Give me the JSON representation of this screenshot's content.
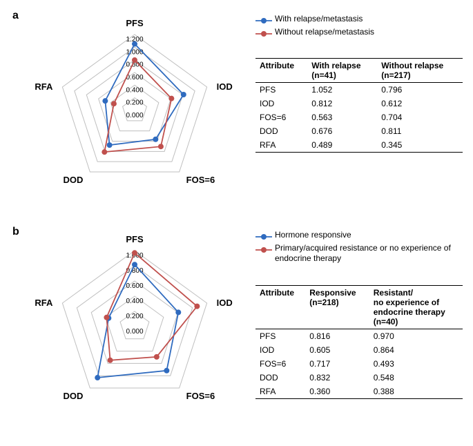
{
  "colors": {
    "series1": "#2f6bbf",
    "series2": "#c0504d",
    "grid": "#bfbfbf",
    "text": "#000000",
    "background": "#ffffff"
  },
  "shared": {
    "axes": [
      "PFS",
      "IOD",
      "FOS=6",
      "DOD",
      "RFA"
    ],
    "marker_radius": 4,
    "line_width": 1.8
  },
  "panel_a": {
    "label": "a",
    "legend": [
      {
        "label": "With relapse/metastasis",
        "color_key": "series1"
      },
      {
        "label": "Without relapse/metastasis",
        "color_key": "series2"
      }
    ],
    "ticks": [
      0.0,
      0.2,
      0.4,
      0.6,
      0.8,
      1.0,
      1.2
    ],
    "max": 1.2,
    "series": {
      "with_relapse": {
        "color_key": "series1",
        "values": [
          1.052,
          0.812,
          0.563,
          0.676,
          0.489
        ]
      },
      "without_relapse": {
        "color_key": "series2",
        "values": [
          0.796,
          0.612,
          0.704,
          0.811,
          0.345
        ]
      }
    },
    "table": {
      "headers": [
        "Attribute",
        "With relapse\n(n=41)",
        "Without relapse\n(n=217)"
      ],
      "rows": [
        [
          "PFS",
          "1.052",
          "0.796"
        ],
        [
          "IOD",
          "0.812",
          "0.612"
        ],
        [
          "FOS=6",
          "0.563",
          "0.704"
        ],
        [
          "DOD",
          "0.676",
          "0.811"
        ],
        [
          "RFA",
          "0.489",
          "0.345"
        ]
      ]
    }
  },
  "panel_b": {
    "label": "b",
    "legend": [
      {
        "label": "Hormone responsive",
        "color_key": "series1"
      },
      {
        "label": "Primary/acquired resistance or no experience of endocrine therapy",
        "color_key": "series2"
      }
    ],
    "ticks": [
      0.0,
      0.2,
      0.4,
      0.6,
      0.8,
      1.0
    ],
    "max": 1.0,
    "series": {
      "responsive": {
        "color_key": "series1",
        "values": [
          0.816,
          0.605,
          0.717,
          0.832,
          0.36
        ]
      },
      "resistant": {
        "color_key": "series2",
        "values": [
          0.97,
          0.864,
          0.493,
          0.548,
          0.388
        ]
      }
    },
    "table": {
      "headers": [
        "Attribute",
        "Responsive\n(n=218)",
        "Resistant/\nno experience of\nendocrine therapy\n(n=40)"
      ],
      "rows": [
        [
          "PFS",
          "0.816",
          "0.970"
        ],
        [
          "IOD",
          "0.605",
          "0.864"
        ],
        [
          "FOS=6",
          "0.717",
          "0.493"
        ],
        [
          "DOD",
          "0.832",
          "0.548"
        ],
        [
          "RFA",
          "0.360",
          "0.388"
        ]
      ]
    }
  }
}
